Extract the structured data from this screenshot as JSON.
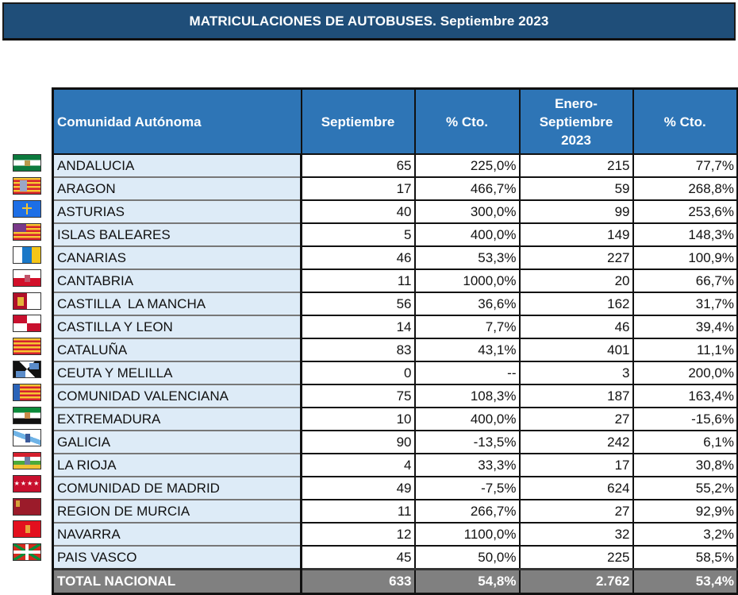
{
  "title": "MATRICULACIONES DE AUTOBUSES. Septiembre 2023",
  "columns": [
    {
      "key": "region",
      "label": "Comunidad Autónoma"
    },
    {
      "key": "sep",
      "label": "Septiembre"
    },
    {
      "key": "sep_pct",
      "label": "% Cto."
    },
    {
      "key": "ytd",
      "label_lines": [
        "Enero-",
        "Septiembre",
        "2023"
      ]
    },
    {
      "key": "ytd_pct",
      "label": "% Cto."
    }
  ],
  "rows": [
    {
      "region": "ANDALUCIA",
      "flag": "andalucia-flag-icon",
      "sep": "65",
      "sep_pct": "225,0%",
      "ytd": "215",
      "ytd_pct": "77,7%"
    },
    {
      "region": "ARAGON",
      "flag": "aragon-flag-icon",
      "sep": "17",
      "sep_pct": "466,7%",
      "ytd": "59",
      "ytd_pct": "268,8%"
    },
    {
      "region": "ASTURIAS",
      "flag": "asturias-flag-icon",
      "sep": "40",
      "sep_pct": "300,0%",
      "ytd": "99",
      "ytd_pct": "253,6%"
    },
    {
      "region": "ISLAS BALEARES",
      "flag": "baleares-flag-icon",
      "sep": "5",
      "sep_pct": "400,0%",
      "ytd": "149",
      "ytd_pct": "148,3%"
    },
    {
      "region": "CANARIAS",
      "flag": "canarias-flag-icon",
      "sep": "46",
      "sep_pct": "53,3%",
      "ytd": "227",
      "ytd_pct": "100,9%"
    },
    {
      "region": "CANTABRIA",
      "flag": "cantabria-flag-icon",
      "sep": "11",
      "sep_pct": "1000,0%",
      "ytd": "20",
      "ytd_pct": "66,7%"
    },
    {
      "region": "CASTILLA  LA MANCHA",
      "flag": "castilla-la-mancha-flag-icon",
      "sep": "56",
      "sep_pct": "36,6%",
      "ytd": "162",
      "ytd_pct": "31,7%"
    },
    {
      "region": "CASTILLA Y LEON",
      "flag": "castilla-y-leon-flag-icon",
      "sep": "14",
      "sep_pct": "7,7%",
      "ytd": "46",
      "ytd_pct": "39,4%"
    },
    {
      "region": "CATALUÑA",
      "flag": "cataluna-flag-icon",
      "sep": "83",
      "sep_pct": "43,1%",
      "ytd": "401",
      "ytd_pct": "11,1%"
    },
    {
      "region": "CEUTA Y MELILLA",
      "flag": "ceuta-melilla-flag-icon",
      "sep": "0",
      "sep_pct": "--",
      "ytd": "3",
      "ytd_pct": "200,0%"
    },
    {
      "region": "COMUNIDAD VALENCIANA",
      "flag": "valenciana-flag-icon",
      "sep": "75",
      "sep_pct": "108,3%",
      "ytd": "187",
      "ytd_pct": "163,4%"
    },
    {
      "region": "EXTREMADURA",
      "flag": "extremadura-flag-icon",
      "sep": "10",
      "sep_pct": "400,0%",
      "ytd": "27",
      "ytd_pct": "-15,6%"
    },
    {
      "region": "GALICIA",
      "flag": "galicia-flag-icon",
      "sep": "90",
      "sep_pct": "-13,5%",
      "ytd": "242",
      "ytd_pct": "6,1%"
    },
    {
      "region": "LA RIOJA",
      "flag": "la-rioja-flag-icon",
      "sep": "4",
      "sep_pct": "33,3%",
      "ytd": "17",
      "ytd_pct": "30,8%"
    },
    {
      "region": "COMUNIDAD DE MADRID",
      "flag": "madrid-flag-icon",
      "sep": "49",
      "sep_pct": "-7,5%",
      "ytd": "624",
      "ytd_pct": "55,2%"
    },
    {
      "region": "REGION DE MURCIA",
      "flag": "murcia-flag-icon",
      "sep": "11",
      "sep_pct": "266,7%",
      "ytd": "27",
      "ytd_pct": "92,9%"
    },
    {
      "region": "NAVARRA",
      "flag": "navarra-flag-icon",
      "sep": "12",
      "sep_pct": "1100,0%",
      "ytd": "32",
      "ytd_pct": "3,2%"
    },
    {
      "region": "PAIS VASCO",
      "flag": "pais-vasco-flag-icon",
      "sep": "45",
      "sep_pct": "50,0%",
      "ytd": "225",
      "ytd_pct": "58,5%"
    }
  ],
  "total": {
    "region": "TOTAL NACIONAL",
    "sep": "633",
    "sep_pct": "54,8%",
    "ytd": "2.762",
    "ytd_pct": "53,4%"
  },
  "colors": {
    "title_bg": "#1f4e79",
    "header_bg": "#2e75b6",
    "region_bg": "#ddebf7",
    "total_bg": "#808080"
  }
}
